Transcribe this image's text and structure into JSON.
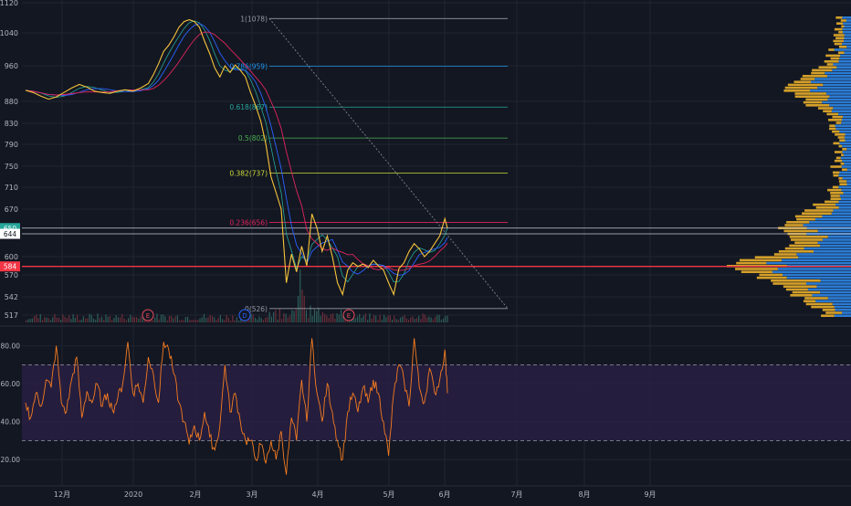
{
  "colors": {
    "background": "#131722",
    "grid": "#1f2430",
    "axis_text": "#b2b5be",
    "price_line": "#f5c33b",
    "ma_blue": "#2962ff",
    "ma_red": "#e0245e",
    "ma_teal": "#26a69a",
    "volume_profile_up": "#2b7bd3",
    "volume_profile_down": "#d4a02a",
    "rsi_line": "#f57c20",
    "rsi_band": "#2a1f45",
    "marker_red": "#e54a5a",
    "marker_blue": "#2962ff"
  },
  "chart_data": [
    {
      "type": "line",
      "panel": "price",
      "y_ticks": [
        "1120",
        "1040",
        "960",
        "880",
        "830",
        "790",
        "750",
        "710",
        "670",
        "600",
        "570",
        "542",
        "517"
      ],
      "x_ticks": [
        "12月",
        "2020",
        "2月",
        "3月",
        "4月",
        "5月",
        "6月",
        "7月",
        "8月",
        "9月"
      ],
      "ylim": [
        505,
        1125
      ],
      "series": [
        {
          "values": [
            [
              0,
              905
            ],
            [
              6,
              900
            ],
            [
              12,
              892
            ],
            [
              18,
              885
            ],
            [
              24,
              890
            ],
            [
              30,
              900
            ],
            [
              36,
              910
            ],
            [
              42,
              918
            ],
            [
              48,
              912
            ],
            [
              54,
              903
            ],
            [
              60,
              900
            ],
            [
              66,
              898
            ],
            [
              72,
              903
            ],
            [
              78,
              906
            ],
            [
              84,
              903
            ],
            [
              90,
              910
            ],
            [
              96,
              920
            ],
            [
              100,
              940
            ],
            [
              104,
              965
            ],
            [
              108,
              995
            ],
            [
              112,
              1010
            ],
            [
              116,
              1030
            ],
            [
              120,
              1055
            ],
            [
              124,
              1070
            ],
            [
              128,
              1075
            ],
            [
              132,
              1070
            ],
            [
              136,
              1055
            ],
            [
              140,
              1020
            ],
            [
              144,
              990
            ],
            [
              148,
              955
            ],
            [
              152,
              935
            ],
            [
              156,
              960
            ],
            [
              160,
              945
            ],
            [
              164,
              962
            ],
            [
              168,
              950
            ],
            [
              172,
              935
            ],
            [
              176,
              900
            ],
            [
              180,
              870
            ],
            [
              184,
              835
            ],
            [
              188,
              790
            ],
            [
              192,
              730
            ],
            [
              196,
              700
            ],
            [
              200,
              670
            ],
            [
              204,
              560
            ],
            [
              208,
              605
            ],
            [
              212,
              575
            ],
            [
              216,
              620
            ],
            [
              220,
              585
            ],
            [
              224,
              665
            ],
            [
              228,
              650
            ],
            [
              232,
              610
            ],
            [
              236,
              640
            ],
            [
              240,
              600
            ],
            [
              244,
              560
            ],
            [
              248,
              545
            ],
            [
              252,
              578
            ],
            [
              256,
              590
            ],
            [
              260,
              584
            ],
            [
              264,
              588
            ],
            [
              268,
              582
            ],
            [
              272,
              594
            ],
            [
              276,
              585
            ],
            [
              280,
              578
            ],
            [
              284,
              560
            ],
            [
              288,
              545
            ],
            [
              292,
              580
            ],
            [
              296,
              590
            ],
            [
              300,
              610
            ],
            [
              304,
              625
            ],
            [
              308,
              615
            ],
            [
              312,
              600
            ],
            [
              316,
              610
            ],
            [
              320,
              625
            ],
            [
              324,
              640
            ],
            [
              328,
              660
            ],
            [
              330,
              650
            ]
          ]
        }
      ],
      "fib_levels": [
        {
          "label": "1(1078)",
          "value": 1078
        },
        {
          "label": "0.786(959)",
          "value": 959
        },
        {
          "label": "0.618(867)",
          "value": 867
        },
        {
          "label": "0.5(802)",
          "value": 802
        },
        {
          "label": "0.382(737)",
          "value": 737
        },
        {
          "label": "0.236(656)",
          "value": 656
        },
        {
          "label": "0(526)",
          "value": 526
        }
      ],
      "price_labels": [
        {
          "text": "650",
          "value": 650,
          "bg": "#26a69a",
          "fg": "#ffffff"
        },
        {
          "text": "644",
          "value": 644,
          "bg": "#ffffff",
          "fg": "#131722"
        },
        {
          "text": "584",
          "value": 584,
          "bg": "#f23645",
          "fg": "#ffffff"
        }
      ],
      "event_markers": [
        "E",
        "D",
        "E"
      ]
    },
    {
      "type": "line",
      "panel": "rsi",
      "y_ticks": [
        "80.00",
        "60.00",
        "40.00",
        "20.00"
      ],
      "ylim": [
        8,
        88
      ],
      "band": [
        30,
        70
      ],
      "series": [
        {
          "values": [
            [
              0,
              50
            ],
            [
              4,
              42
            ],
            [
              8,
              55
            ],
            [
              12,
              48
            ],
            [
              16,
              62
            ],
            [
              20,
              58
            ],
            [
              24,
              80
            ],
            [
              28,
              50
            ],
            [
              32,
              45
            ],
            [
              36,
              62
            ],
            [
              40,
              74
            ],
            [
              44,
              42
            ],
            [
              48,
              56
            ],
            [
              52,
              50
            ],
            [
              56,
              60
            ],
            [
              60,
              48
            ],
            [
              64,
              55
            ],
            [
              68,
              46
            ],
            [
              72,
              52
            ],
            [
              76,
              60
            ],
            [
              80,
              82
            ],
            [
              84,
              55
            ],
            [
              88,
              60
            ],
            [
              92,
              50
            ],
            [
              96,
              74
            ],
            [
              100,
              65
            ],
            [
              104,
              50
            ],
            [
              108,
              82
            ],
            [
              112,
              78
            ],
            [
              116,
              65
            ],
            [
              120,
              50
            ],
            [
              124,
              40
            ],
            [
              128,
              28
            ],
            [
              132,
              38
            ],
            [
              136,
              30
            ],
            [
              140,
              45
            ],
            [
              144,
              32
            ],
            [
              148,
              25
            ],
            [
              152,
              38
            ],
            [
              156,
              70
            ],
            [
              160,
              45
            ],
            [
              164,
              55
            ],
            [
              168,
              40
            ],
            [
              172,
              30
            ],
            [
              176,
              30
            ],
            [
              180,
              20
            ],
            [
              184,
              28
            ],
            [
              188,
              18
            ],
            [
              192,
              30
            ],
            [
              196,
              20
            ],
            [
              200,
              35
            ],
            [
              204,
              12
            ],
            [
              208,
              42
            ],
            [
              212,
              30
            ],
            [
              216,
              62
            ],
            [
              220,
              40
            ],
            [
              224,
              84
            ],
            [
              228,
              55
            ],
            [
              232,
              40
            ],
            [
              236,
              60
            ],
            [
              240,
              45
            ],
            [
              244,
              30
            ],
            [
              248,
              20
            ],
            [
              252,
              45
            ],
            [
              256,
              55
            ],
            [
              260,
              45
            ],
            [
              264,
              58
            ],
            [
              268,
              50
            ],
            [
              272,
              62
            ],
            [
              276,
              55
            ],
            [
              280,
              40
            ],
            [
              284,
              22
            ],
            [
              288,
              55
            ],
            [
              292,
              70
            ],
            [
              296,
              62
            ],
            [
              300,
              48
            ],
            [
              304,
              84
            ],
            [
              308,
              58
            ],
            [
              312,
              50
            ],
            [
              316,
              68
            ],
            [
              320,
              55
            ],
            [
              324,
              62
            ],
            [
              328,
              78
            ],
            [
              330,
              55
            ]
          ]
        }
      ]
    }
  ]
}
